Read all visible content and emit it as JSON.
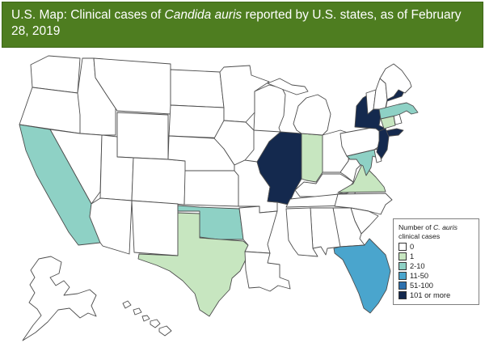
{
  "header": {
    "title_prefix": "U.S. Map: Clinical cases of ",
    "title_italic": "Candida auris",
    "title_suffix": " reported by U.S. states, as of February 28, 2019",
    "background_color": "#4e7d20"
  },
  "legend": {
    "title_prefix": "Number of ",
    "title_italic": "C. auris",
    "title_suffix": " clinical cases",
    "items": [
      {
        "label": "0",
        "color": "#ffffff"
      },
      {
        "label": "1",
        "color": "#c7e6c0"
      },
      {
        "label": "2-10",
        "color": "#8ed1c5"
      },
      {
        "label": "11-50",
        "color": "#4aa5cd"
      },
      {
        "label": "51-100",
        "color": "#2d70ad"
      },
      {
        "label": "101 or more",
        "color": "#14294e"
      }
    ]
  },
  "map": {
    "stroke_color": "#4d4d4d",
    "default_category": "0",
    "category_colors": {
      "0": "#ffffff",
      "1": "#c7e6c0",
      "2-10": "#8ed1c5",
      "11-50": "#4aa5cd",
      "51-100": "#2d70ad",
      "101 or more": "#14294e"
    },
    "state_categories": {
      "WA": "0",
      "OR": "0",
      "CA": "2-10",
      "NV": "0",
      "ID": "0",
      "MT": "0",
      "WY": "0",
      "UT": "0",
      "CO": "0",
      "AZ": "0",
      "NM": "0",
      "ND": "0",
      "SD": "0",
      "NE": "0",
      "KS": "0",
      "OK": "2-10",
      "TX": "1",
      "MN": "0",
      "IA": "0",
      "MO": "0",
      "AR": "0",
      "LA": "0",
      "WI": "0",
      "IL": "101 or more",
      "IN": "1",
      "MI": "0",
      "OH": "0",
      "KY": "0",
      "TN": "0",
      "WV": "0",
      "VA": "1",
      "MD": "2-10",
      "DE": "0",
      "PA": "0",
      "NJ": "101 or more",
      "NY": "101 or more",
      "CT": "1",
      "RI": "0",
      "MA": "2-10",
      "VT": "0",
      "NH": "0",
      "ME": "0",
      "NC": "0",
      "SC": "0",
      "GA": "0",
      "AL": "0",
      "MS": "0",
      "FL": "11-50",
      "AK": "0",
      "HI": "0"
    }
  }
}
